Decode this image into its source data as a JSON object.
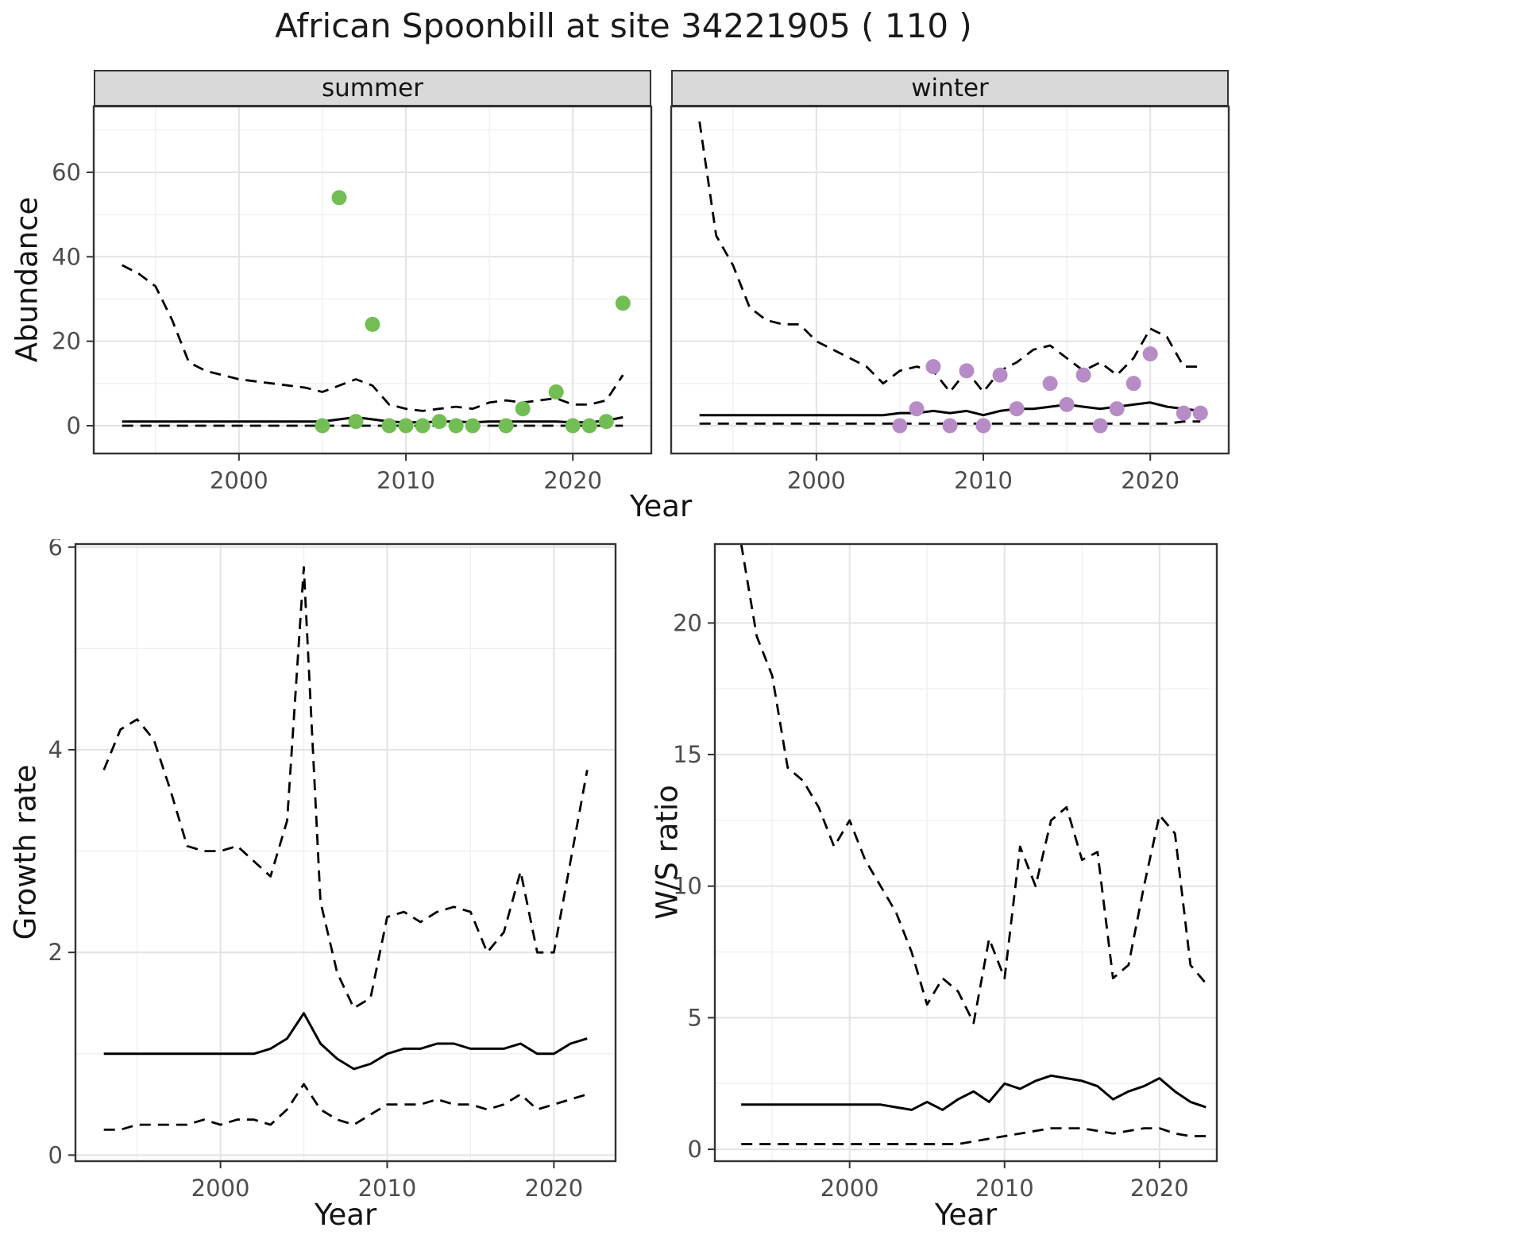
{
  "title": "African Spoonbill at site 34221905 ( 110 )",
  "labels": {
    "year": "Year",
    "abundance": "Abundance",
    "growth": "Growth rate",
    "ws": "W/S ratio"
  },
  "facets": [
    "summer",
    "winter"
  ],
  "theme": {
    "strip_bg": "#d9d9d9",
    "panel_border": "#333333",
    "grid_major": "#e3e3e3",
    "grid_minor": "#f0f0f0",
    "tick_text": "#4d4d4d",
    "line_color": "#000000",
    "summer_point_color": "#72be54",
    "winter_point_color": "#b78cc6"
  },
  "chart_data": [
    {
      "name": "abundance_summer",
      "type": "line",
      "facet": "summer",
      "xlabel": "Year",
      "ylabel": "Abundance",
      "xlim": [
        1991.3,
        2024.7
      ],
      "ylim": [
        -6.58,
        75.6
      ],
      "xticks": [
        2000,
        2010,
        2020
      ],
      "yticks": [
        0,
        20,
        40,
        60
      ],
      "xminor": [
        1995,
        2005,
        2015
      ],
      "yminor": [
        10,
        30,
        50,
        70
      ],
      "series": [
        {
          "name": "upper-ci",
          "style": "dashed",
          "x": [
            1993,
            1994,
            1995,
            1996,
            1997,
            1998,
            1999,
            2000,
            2001,
            2002,
            2003,
            2004,
            2005,
            2006,
            2007,
            2008,
            2009,
            2010,
            2011,
            2012,
            2013,
            2014,
            2015,
            2016,
            2017,
            2018,
            2019,
            2020,
            2021,
            2022,
            2023
          ],
          "y": [
            38,
            36,
            33,
            25,
            15,
            13,
            12,
            11,
            10.5,
            10,
            9.5,
            9,
            8,
            9.5,
            11,
            9.5,
            5,
            4,
            3.5,
            4,
            4.5,
            4,
            5.5,
            6,
            5.5,
            6,
            6.5,
            5,
            5,
            6,
            12
          ]
        },
        {
          "name": "median",
          "style": "solid",
          "x": [
            1993,
            1994,
            1995,
            1996,
            1997,
            1998,
            1999,
            2000,
            2001,
            2002,
            2003,
            2004,
            2005,
            2006,
            2007,
            2008,
            2009,
            2010,
            2011,
            2012,
            2013,
            2014,
            2015,
            2016,
            2017,
            2018,
            2019,
            2020,
            2021,
            2022,
            2023
          ],
          "y": [
            1,
            1,
            1,
            1,
            1,
            1,
            1,
            1,
            1,
            1,
            1,
            1,
            1,
            1.5,
            2,
            1.5,
            1,
            0.8,
            0.8,
            1,
            1,
            0.8,
            1,
            1,
            1,
            1,
            1,
            0.8,
            0.8,
            1.2,
            2
          ]
        },
        {
          "name": "lower-ci",
          "style": "dashed",
          "x": [
            1993,
            1994,
            1995,
            1996,
            1997,
            1998,
            1999,
            2000,
            2001,
            2002,
            2003,
            2004,
            2005,
            2006,
            2007,
            2008,
            2009,
            2010,
            2011,
            2012,
            2013,
            2014,
            2015,
            2016,
            2017,
            2018,
            2019,
            2020,
            2021,
            2022,
            2023
          ],
          "y": [
            0,
            0,
            0,
            0,
            0,
            0,
            0,
            0,
            0,
            0,
            0,
            0,
            0,
            0,
            0,
            0,
            0,
            0,
            0,
            0,
            0,
            0,
            0,
            0,
            0,
            0,
            0,
            0,
            0,
            0,
            0
          ]
        },
        {
          "name": "summer-observations",
          "style": "points",
          "color": "#72be54",
          "x": [
            2005,
            2006,
            2007,
            2008,
            2009,
            2010,
            2011,
            2012,
            2013,
            2014,
            2016,
            2017,
            2019,
            2020,
            2021,
            2022,
            2023
          ],
          "y": [
            0,
            54,
            1,
            24,
            0,
            0,
            0,
            1,
            0,
            0,
            0,
            4,
            8,
            0,
            0,
            1,
            29
          ]
        }
      ]
    },
    {
      "name": "abundance_winter",
      "type": "line",
      "facet": "winter",
      "xlabel": "Year",
      "ylabel": "Abundance",
      "xlim": [
        1991.3,
        2024.7
      ],
      "ylim": [
        -6.58,
        75.6
      ],
      "xticks": [
        2000,
        2010,
        2020
      ],
      "yticks": [
        0,
        20,
        40,
        60
      ],
      "xminor": [
        1995,
        2005,
        2015
      ],
      "yminor": [
        10,
        30,
        50,
        70
      ],
      "series": [
        {
          "name": "upper-ci",
          "style": "dashed",
          "x": [
            1993,
            1994,
            1995,
            1996,
            1997,
            1998,
            1999,
            2000,
            2001,
            2002,
            2003,
            2004,
            2005,
            2006,
            2007,
            2008,
            2009,
            2010,
            2011,
            2012,
            2013,
            2014,
            2015,
            2016,
            2017,
            2018,
            2019,
            2020,
            2021,
            2022,
            2023
          ],
          "y": [
            72,
            45,
            38,
            28,
            25,
            24,
            24,
            20,
            18,
            16,
            14,
            10,
            13,
            14,
            13,
            8,
            13,
            8,
            13,
            15,
            18,
            19,
            16,
            13,
            15,
            12,
            16,
            23,
            21,
            14,
            14
          ]
        },
        {
          "name": "median",
          "style": "solid",
          "x": [
            1993,
            1994,
            1995,
            1996,
            1997,
            1998,
            1999,
            2000,
            2001,
            2002,
            2003,
            2004,
            2005,
            2006,
            2007,
            2008,
            2009,
            2010,
            2011,
            2012,
            2013,
            2014,
            2015,
            2016,
            2017,
            2018,
            2019,
            2020,
            2021,
            2022,
            2023
          ],
          "y": [
            2.5,
            2.5,
            2.5,
            2.5,
            2.5,
            2.5,
            2.5,
            2.5,
            2.5,
            2.5,
            2.5,
            2.5,
            3,
            3,
            3.5,
            3,
            3.5,
            2.5,
            3.5,
            4,
            4,
            4.5,
            5,
            4.5,
            4,
            4.5,
            5,
            5.5,
            4.5,
            4,
            3.5
          ]
        },
        {
          "name": "lower-ci",
          "style": "dashed",
          "x": [
            1993,
            1994,
            1995,
            1996,
            1997,
            1998,
            1999,
            2000,
            2001,
            2002,
            2003,
            2004,
            2005,
            2006,
            2007,
            2008,
            2009,
            2010,
            2011,
            2012,
            2013,
            2014,
            2015,
            2016,
            2017,
            2018,
            2019,
            2020,
            2021,
            2022,
            2023
          ],
          "y": [
            0.5,
            0.5,
            0.5,
            0.5,
            0.5,
            0.5,
            0.5,
            0.5,
            0.5,
            0.5,
            0.5,
            0.5,
            0.5,
            0.5,
            0.5,
            0.5,
            0.5,
            0.5,
            0.5,
            0.5,
            0.5,
            0.5,
            0.5,
            0.5,
            0.5,
            0.5,
            0.5,
            0.5,
            0.5,
            1,
            1
          ]
        },
        {
          "name": "winter-observations",
          "style": "points",
          "color": "#b78cc6",
          "x": [
            2005,
            2006,
            2007,
            2008,
            2009,
            2010,
            2011,
            2012,
            2014,
            2015,
            2016,
            2017,
            2018,
            2019,
            2020,
            2022,
            2023
          ],
          "y": [
            0,
            4,
            14,
            0,
            13,
            0,
            12,
            4,
            10,
            5,
            12,
            0,
            4,
            10,
            17,
            3,
            3
          ]
        }
      ]
    },
    {
      "name": "growth_rate",
      "type": "line",
      "facet": null,
      "xlabel": "Year",
      "ylabel": "Growth rate",
      "xlim": [
        1991.3,
        2023.7
      ],
      "ylim": [
        -0.06,
        6.03
      ],
      "xticks": [
        2000,
        2010,
        2020
      ],
      "yticks": [
        0,
        2,
        4,
        6
      ],
      "xminor": [
        1995,
        2005,
        2015
      ],
      "yminor": [
        1,
        3,
        5
      ],
      "series": [
        {
          "name": "upper-ci",
          "style": "dashed",
          "x": [
            1993,
            1994,
            1995,
            1996,
            1997,
            1998,
            1999,
            2000,
            2001,
            2002,
            2003,
            2004,
            2005,
            2006,
            2007,
            2008,
            2009,
            2010,
            2011,
            2012,
            2013,
            2014,
            2015,
            2016,
            2017,
            2018,
            2019,
            2020,
            2021,
            2022
          ],
          "y": [
            3.8,
            4.2,
            4.3,
            4.1,
            3.6,
            3.05,
            3,
            3,
            3.05,
            2.9,
            2.75,
            3.3,
            5.8,
            2.5,
            1.8,
            1.45,
            1.55,
            2.35,
            2.4,
            2.3,
            2.4,
            2.45,
            2.4,
            2,
            2.2,
            2.8,
            2,
            2,
            2.9,
            3.8
          ]
        },
        {
          "name": "median",
          "style": "solid",
          "x": [
            1993,
            1994,
            1995,
            1996,
            1997,
            1998,
            1999,
            2000,
            2001,
            2002,
            2003,
            2004,
            2005,
            2006,
            2007,
            2008,
            2009,
            2010,
            2011,
            2012,
            2013,
            2014,
            2015,
            2016,
            2017,
            2018,
            2019,
            2020,
            2021,
            2022
          ],
          "y": [
            1,
            1,
            1,
            1,
            1,
            1,
            1,
            1,
            1,
            1,
            1.05,
            1.15,
            1.4,
            1.1,
            0.95,
            0.85,
            0.9,
            1,
            1.05,
            1.05,
            1.1,
            1.1,
            1.05,
            1.05,
            1.05,
            1.1,
            1,
            1,
            1.1,
            1.15
          ]
        },
        {
          "name": "lower-ci",
          "style": "dashed",
          "x": [
            1993,
            1994,
            1995,
            1996,
            1997,
            1998,
            1999,
            2000,
            2001,
            2002,
            2003,
            2004,
            2005,
            2006,
            2007,
            2008,
            2009,
            2010,
            2011,
            2012,
            2013,
            2014,
            2015,
            2016,
            2017,
            2018,
            2019,
            2020,
            2021,
            2022
          ],
          "y": [
            0.25,
            0.25,
            0.3,
            0.3,
            0.3,
            0.3,
            0.35,
            0.3,
            0.35,
            0.35,
            0.3,
            0.45,
            0.7,
            0.45,
            0.35,
            0.3,
            0.4,
            0.5,
            0.5,
            0.5,
            0.55,
            0.5,
            0.5,
            0.45,
            0.5,
            0.6,
            0.45,
            0.5,
            0.55,
            0.6
          ]
        }
      ]
    },
    {
      "name": "ws_ratio",
      "type": "line",
      "facet": null,
      "xlabel": "Year",
      "ylabel": "W/S ratio",
      "xlim": [
        1991.3,
        2023.7
      ],
      "ylim": [
        -0.45,
        23.0
      ],
      "xticks": [
        2000,
        2010,
        2020
      ],
      "yticks": [
        0,
        5,
        10,
        15,
        20
      ],
      "xminor": [
        1995,
        2005,
        2015
      ],
      "yminor": [
        2.5,
        7.5,
        12.5,
        17.5
      ],
      "series": [
        {
          "name": "upper-ci",
          "style": "dashed",
          "x": [
            1993,
            1994,
            1995,
            1996,
            1997,
            1998,
            1999,
            2000,
            2001,
            2002,
            2003,
            2004,
            2005,
            2006,
            2007,
            2008,
            2009,
            2010,
            2011,
            2012,
            2013,
            2014,
            2015,
            2016,
            2017,
            2018,
            2019,
            2020,
            2021,
            2022,
            2023
          ],
          "y": [
            23,
            19.5,
            18,
            14.5,
            14,
            13,
            11.5,
            12.5,
            11,
            10,
            9,
            7.5,
            5.5,
            6.5,
            6,
            4.8,
            8,
            6.5,
            11.5,
            10,
            12.5,
            13,
            11,
            11.3,
            6.5,
            7,
            10,
            12.7,
            12,
            7,
            6.3
          ]
        },
        {
          "name": "median",
          "style": "solid",
          "x": [
            1993,
            1994,
            1995,
            1996,
            1997,
            1998,
            1999,
            2000,
            2001,
            2002,
            2003,
            2004,
            2005,
            2006,
            2007,
            2008,
            2009,
            2010,
            2011,
            2012,
            2013,
            2014,
            2015,
            2016,
            2017,
            2018,
            2019,
            2020,
            2021,
            2022,
            2023
          ],
          "y": [
            1.7,
            1.7,
            1.7,
            1.7,
            1.7,
            1.7,
            1.7,
            1.7,
            1.7,
            1.7,
            1.6,
            1.5,
            1.8,
            1.5,
            1.9,
            2.2,
            1.8,
            2.5,
            2.3,
            2.6,
            2.8,
            2.7,
            2.6,
            2.4,
            1.9,
            2.2,
            2.4,
            2.7,
            2.2,
            1.8,
            1.6
          ]
        },
        {
          "name": "lower-ci",
          "style": "dashed",
          "x": [
            1993,
            1994,
            1995,
            1996,
            1997,
            1998,
            1999,
            2000,
            2001,
            2002,
            2003,
            2004,
            2005,
            2006,
            2007,
            2008,
            2009,
            2010,
            2011,
            2012,
            2013,
            2014,
            2015,
            2016,
            2017,
            2018,
            2019,
            2020,
            2021,
            2022,
            2023
          ],
          "y": [
            0.2,
            0.2,
            0.2,
            0.2,
            0.2,
            0.2,
            0.2,
            0.2,
            0.2,
            0.2,
            0.2,
            0.2,
            0.2,
            0.2,
            0.2,
            0.3,
            0.4,
            0.5,
            0.6,
            0.7,
            0.8,
            0.8,
            0.8,
            0.7,
            0.6,
            0.7,
            0.8,
            0.8,
            0.6,
            0.5,
            0.5
          ]
        }
      ]
    }
  ]
}
